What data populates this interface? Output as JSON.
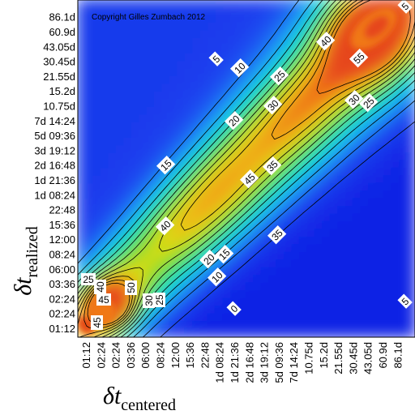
{
  "chart_data": {
    "type": "heatmap",
    "title": "",
    "copyright": "Copyright Gilles Zumbach 2012",
    "x_axis": {
      "symbol": "δt",
      "subscript": "centered",
      "ticks": [
        "01:12",
        "02:24",
        "02:24",
        "03:36",
        "06:00",
        "08:24",
        "12:00",
        "15:36",
        "22:48",
        "1d 08:24",
        "1d 21:36",
        "2d 16:48",
        "3d 19:12",
        "5d 09:36",
        "7d 14:24",
        "10.75d",
        "15.2d",
        "21.55d",
        "30.45d",
        "43.05d",
        "60.9d",
        "86.1d"
      ]
    },
    "y_axis": {
      "symbol": "δt",
      "subscript": "realized",
      "ticks": [
        "01:12",
        "02:24",
        "02:24",
        "03:36",
        "06:00",
        "08:24",
        "12:00",
        "15:36",
        "22:48",
        "1d 08:24",
        "1d 21:36",
        "2d 16:48",
        "3d 19:12",
        "5d 09:36",
        "7d 14:24",
        "10.75d",
        "15.2d",
        "21.55d",
        "30.45d",
        "43.05d",
        "60.9d",
        "86.1d"
      ]
    },
    "contour_levels": [
      0,
      5,
      10,
      15,
      20,
      25,
      30,
      35,
      40,
      45,
      50,
      55
    ],
    "contour_labels": [
      "5",
      "10",
      "25",
      "20",
      "30",
      "15",
      "40",
      "35",
      "30",
      "25",
      "55",
      "45",
      "40",
      "35",
      "5",
      "20",
      "15",
      "10",
      "0",
      "5",
      "50",
      "25",
      "40",
      "45",
      "45",
      "30",
      "25"
    ],
    "value_range": [
      -5,
      60
    ],
    "colormap": [
      "#0a14e0",
      "#1e46f0",
      "#1e8cf5",
      "#14c8f0",
      "#14e6b4",
      "#3cdc50",
      "#8cdc28",
      "#dcdc14",
      "#f0b414",
      "#f07814",
      "#e6461e"
    ]
  }
}
